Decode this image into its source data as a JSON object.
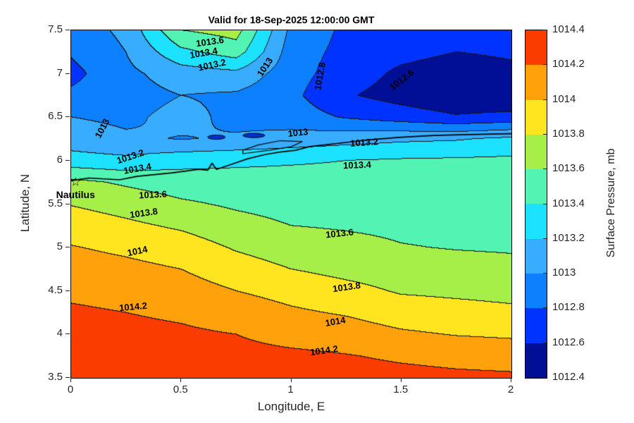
{
  "figure": {
    "title": "Valid for 18-Sep-2025 12:00:00 GMT",
    "background_color": "#ffffff"
  },
  "axes": {
    "xlabel": "Longitude, E",
    "ylabel": "Latitude, N",
    "xlim": [
      0,
      2
    ],
    "ylim": [
      3.5,
      7.5
    ],
    "xticks": [
      {
        "v": 0,
        "label": "0"
      },
      {
        "v": 0.5,
        "label": "0.5"
      },
      {
        "v": 1,
        "label": "1"
      },
      {
        "v": 1.5,
        "label": "1.5"
      },
      {
        "v": 2,
        "label": "2"
      }
    ],
    "yticks": [
      {
        "v": 7.5,
        "label": "7.5"
      },
      {
        "v": 7,
        "label": "7"
      },
      {
        "v": 6.5,
        "label": "6.5"
      },
      {
        "v": 6,
        "label": "6"
      },
      {
        "v": 5.5,
        "label": "5.5"
      },
      {
        "v": 5,
        "label": "5"
      },
      {
        "v": 4.5,
        "label": "4.5"
      },
      {
        "v": 4,
        "label": "4"
      },
      {
        "v": 3.5,
        "label": "3.5"
      }
    ]
  },
  "colorbar": {
    "label": "Surface Pressure, mb",
    "band_colors_bottom_to_top": [
      "#000f96",
      "#0033ff",
      "#0c80ff",
      "#38adff",
      "#1ce1ff",
      "#52f3b3",
      "#a6ef49",
      "#ffe51f",
      "#ffa10a",
      "#fb3c00"
    ],
    "ticks": [
      {
        "v": 1012.4,
        "label": "1012.4"
      },
      {
        "v": 1012.6,
        "label": "1012.6"
      },
      {
        "v": 1012.8,
        "label": "1012.8"
      },
      {
        "v": 1013,
        "label": "1013"
      },
      {
        "v": 1013.2,
        "label": "1013.2"
      },
      {
        "v": 1013.4,
        "label": "1013.4"
      },
      {
        "v": 1013.6,
        "label": "1013.6"
      },
      {
        "v": 1013.8,
        "label": "1013.8"
      },
      {
        "v": 1014,
        "label": "1014"
      },
      {
        "v": 1014.2,
        "label": "1014.2"
      },
      {
        "v": 1014.4,
        "label": "1014.4"
      }
    ]
  },
  "chart_data": {
    "type": "heatmap",
    "subtype": "filled-contour",
    "title": "Valid for 18-Sep-2025 12:00:00 GMT",
    "xlabel": "Longitude, E",
    "ylabel": "Latitude, N",
    "zlabel": "Surface Pressure, mb",
    "levels": [
      1012.4,
      1012.6,
      1012.8,
      1013,
      1013.2,
      1013.4,
      1013.6,
      1013.8,
      1014,
      1014.2,
      1014.4
    ],
    "grid_pressure_mb": {
      "lons": [
        0,
        0.25,
        0.5,
        0.75,
        1,
        1.25,
        1.5,
        1.75,
        2
      ],
      "lats": [
        7.5,
        7.25,
        7,
        6.75,
        6.5,
        6.25,
        6,
        5.75,
        5.5,
        5.25,
        5,
        4.75,
        4.5,
        4.25,
        4,
        3.75,
        3.5
      ],
      "values": [
        [
          1012.88,
          1013.05,
          1013.6,
          1013.68,
          1012.95,
          1012.76,
          1012.72,
          1012.68,
          1012.7
        ],
        [
          1012.82,
          1013.0,
          1013.35,
          1013.5,
          1012.9,
          1012.74,
          1012.66,
          1012.6,
          1012.63
        ],
        [
          1012.74,
          1012.95,
          1013.1,
          1013.15,
          1012.88,
          1012.7,
          1012.56,
          1012.5,
          1012.55
        ],
        [
          1012.84,
          1012.92,
          1013.0,
          1012.97,
          1012.85,
          1012.62,
          1012.52,
          1012.44,
          1012.42
        ],
        [
          1013.0,
          1012.96,
          1013.06,
          1012.95,
          1012.9,
          1012.78,
          1012.7,
          1012.62,
          1012.66
        ],
        [
          1013.1,
          1013.03,
          1012.99,
          1013.02,
          1013.07,
          1013.12,
          1013.16,
          1013.18,
          1013.24
        ],
        [
          1013.28,
          1013.25,
          1013.33,
          1013.36,
          1013.38,
          1013.4,
          1013.42,
          1013.43,
          1013.44
        ],
        [
          1013.65,
          1013.57,
          1013.5,
          1013.48,
          1013.47,
          1013.46,
          1013.47,
          1013.46,
          1013.47
        ],
        [
          1013.79,
          1013.72,
          1013.63,
          1013.57,
          1013.53,
          1013.52,
          1013.51,
          1013.5,
          1013.5
        ],
        [
          1013.91,
          1013.84,
          1013.77,
          1013.67,
          1013.6,
          1013.58,
          1013.56,
          1013.54,
          1013.54
        ],
        [
          1014.01,
          1013.96,
          1013.9,
          1013.78,
          1013.7,
          1013.66,
          1013.61,
          1013.59,
          1013.58
        ],
        [
          1014.09,
          1014.05,
          1014.0,
          1013.89,
          1013.8,
          1013.74,
          1013.7,
          1013.67,
          1013.65
        ],
        [
          1014.16,
          1014.13,
          1014.09,
          1014.0,
          1013.93,
          1013.86,
          1013.78,
          1013.76,
          1013.74
        ],
        [
          1014.23,
          1014.2,
          1014.17,
          1014.11,
          1014.03,
          1013.98,
          1013.9,
          1013.87,
          1013.84
        ],
        [
          1014.26,
          1014.25,
          1014.23,
          1014.2,
          1014.13,
          1014.1,
          1014.03,
          1013.99,
          1013.97
        ],
        [
          1014.3,
          1014.29,
          1014.28,
          1014.26,
          1014.24,
          1014.21,
          1014.17,
          1014.14,
          1014.12
        ],
        [
          1014.33,
          1014.32,
          1014.31,
          1014.3,
          1014.3,
          1014.28,
          1014.26,
          1014.24,
          1014.23
        ]
      ]
    },
    "contour_labels": [
      {
        "text": "1013.6",
        "lon": 0.63,
        "lat": 7.37,
        "rot": -8
      },
      {
        "text": "1013.4",
        "lon": 0.6,
        "lat": 7.24,
        "rot": -10
      },
      {
        "text": "1013.2",
        "lon": 0.64,
        "lat": 7.1,
        "rot": -12
      },
      {
        "text": "1013",
        "lon": 0.88,
        "lat": 7.08,
        "rot": -56
      },
      {
        "text": "1012.8",
        "lon": 1.13,
        "lat": 6.97,
        "rot": -80
      },
      {
        "text": "1012.6",
        "lon": 1.5,
        "lat": 6.93,
        "rot": -38
      },
      {
        "text": "1013",
        "lon": 0.14,
        "lat": 6.37,
        "rot": -62
      },
      {
        "text": "1013",
        "lon": 1.03,
        "lat": 6.32,
        "rot": -6
      },
      {
        "text": "1013.2",
        "lon": 1.33,
        "lat": 6.21,
        "rot": -4
      },
      {
        "text": "1013.2",
        "lon": 0.27,
        "lat": 6.05,
        "rot": -18
      },
      {
        "text": "1013.4",
        "lon": 0.3,
        "lat": 5.91,
        "rot": -10
      },
      {
        "text": "1013.4",
        "lon": 1.3,
        "lat": 5.95,
        "rot": -2
      },
      {
        "text": "1013.6",
        "lon": 0.37,
        "lat": 5.61,
        "rot": -3
      },
      {
        "text": "1013.8",
        "lon": 0.33,
        "lat": 5.4,
        "rot": -8
      },
      {
        "text": "1013.6",
        "lon": 1.22,
        "lat": 5.16,
        "rot": -6
      },
      {
        "text": "1014",
        "lon": 0.3,
        "lat": 4.96,
        "rot": -12
      },
      {
        "text": "1013.8",
        "lon": 1.25,
        "lat": 4.55,
        "rot": -8
      },
      {
        "text": "1014.2",
        "lon": 0.28,
        "lat": 4.32,
        "rot": -5
      },
      {
        "text": "1014",
        "lon": 1.2,
        "lat": 4.15,
        "rot": -10
      },
      {
        "text": "1014.2",
        "lon": 1.15,
        "lat": 3.82,
        "rot": -8
      }
    ],
    "station": {
      "name": "Nautilus",
      "marker_glyph": "☆",
      "lon": 0.02,
      "lat": 5.75,
      "label_lon": 0.02,
      "label_lat": 5.61
    },
    "coastline": [
      [
        0,
        5.77
      ],
      [
        0.08,
        5.8
      ],
      [
        0.15,
        5.79
      ],
      [
        0.22,
        5.78
      ],
      [
        0.3,
        5.82
      ],
      [
        0.38,
        5.84
      ],
      [
        0.46,
        5.86
      ],
      [
        0.52,
        5.88
      ],
      [
        0.58,
        5.9
      ],
      [
        0.62,
        5.89
      ],
      [
        0.64,
        5.97
      ],
      [
        0.66,
        5.9
      ],
      [
        0.72,
        5.95
      ],
      [
        0.8,
        6.02
      ],
      [
        0.88,
        6.07
      ],
      [
        0.95,
        6.1
      ],
      [
        1.02,
        6.12
      ],
      [
        1.08,
        6.16
      ],
      [
        1.15,
        6.18
      ],
      [
        1.25,
        6.21
      ],
      [
        1.35,
        6.24
      ],
      [
        1.5,
        6.27
      ],
      [
        1.65,
        6.29
      ],
      [
        1.8,
        6.3
      ],
      [
        2,
        6.31
      ]
    ],
    "lagoon": [
      [
        0.78,
        6.08
      ],
      [
        0.9,
        6.12
      ],
      [
        1.0,
        6.16
      ],
      [
        1.05,
        6.22
      ],
      [
        0.95,
        6.23
      ],
      [
        0.85,
        6.18
      ],
      [
        0.78,
        6.12
      ],
      [
        0.78,
        6.08
      ]
    ],
    "lakes": [
      {
        "lon": 0.66,
        "lat": 6.27,
        "rx": 0.04,
        "ry": 0.025
      },
      {
        "lon": 0.83,
        "lat": 6.29,
        "rx": 0.05,
        "ry": 0.025
      }
    ]
  }
}
